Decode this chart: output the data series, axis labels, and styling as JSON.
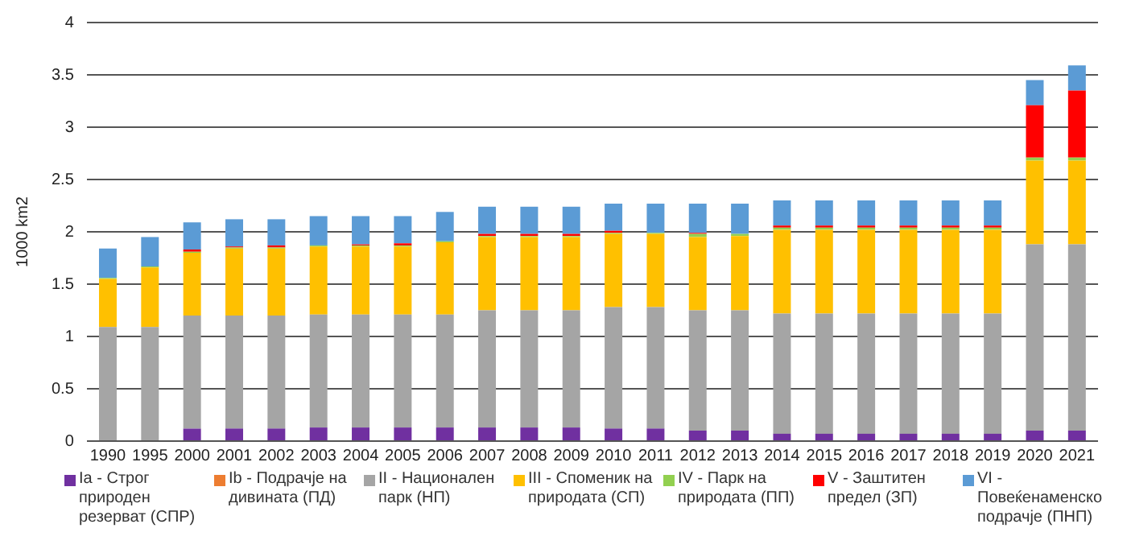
{
  "chart_data": {
    "type": "bar",
    "stacked": true,
    "ylabel": "1000 km2",
    "categories": [
      "1990",
      "1995",
      "2000",
      "2001",
      "2002",
      "2003",
      "2004",
      "2005",
      "2006",
      "2007",
      "2008",
      "2009",
      "2010",
      "2011",
      "2012",
      "2013",
      "2014",
      "2015",
      "2016",
      "2017",
      "2018",
      "2019",
      "2020",
      "2021"
    ],
    "series": [
      {
        "name": "Ia - Строг природен резерват (СПР)",
        "color": "#7030a0",
        "values": [
          0,
          0,
          0.12,
          0.12,
          0.12,
          0.13,
          0.13,
          0.13,
          0.13,
          0.13,
          0.13,
          0.13,
          0.12,
          0.12,
          0.1,
          0.1,
          0.07,
          0.07,
          0.07,
          0.07,
          0.07,
          0.07,
          0.1,
          0.1
        ]
      },
      {
        "name": "Ib - Подрачје на дивината (ПД)",
        "color": "#ed7d31",
        "values": [
          0,
          0,
          0,
          0,
          0,
          0,
          0,
          0,
          0,
          0,
          0,
          0,
          0,
          0,
          0,
          0,
          0,
          0,
          0,
          0,
          0,
          0,
          0,
          0
        ]
      },
      {
        "name": "II - Национален парк (НП)",
        "color": "#a5a5a5",
        "values": [
          1.09,
          1.09,
          1.08,
          1.08,
          1.08,
          1.08,
          1.08,
          1.08,
          1.08,
          1.12,
          1.12,
          1.12,
          1.16,
          1.16,
          1.15,
          1.15,
          1.15,
          1.15,
          1.15,
          1.15,
          1.15,
          1.15,
          1.78,
          1.78
        ]
      },
      {
        "name": "III - Споменик на природата (СП)",
        "color": "#ffc000",
        "values": [
          0.46,
          0.57,
          0.6,
          0.64,
          0.64,
          0.65,
          0.65,
          0.65,
          0.69,
          0.7,
          0.7,
          0.7,
          0.7,
          0.7,
          0.7,
          0.71,
          0.8,
          0.8,
          0.8,
          0.8,
          0.8,
          0.8,
          0.8,
          0.8
        ]
      },
      {
        "name": "IV - Парк на природата (ПП)",
        "color": "#92d050",
        "values": [
          0.01,
          0.01,
          0.01,
          0.01,
          0.01,
          0.01,
          0.01,
          0.01,
          0.01,
          0.01,
          0.01,
          0.01,
          0.01,
          0.01,
          0.03,
          0.02,
          0.02,
          0.02,
          0.02,
          0.02,
          0.02,
          0.02,
          0.03,
          0.03
        ]
      },
      {
        "name": "V - Заштитен предел (ЗП)",
        "color": "#ff0000",
        "values": [
          0,
          0,
          0.02,
          0.01,
          0.02,
          0,
          0.01,
          0.02,
          0,
          0.02,
          0.02,
          0.02,
          0.02,
          0,
          0.01,
          0,
          0.02,
          0.02,
          0.02,
          0.02,
          0.02,
          0.02,
          0.5,
          0.64
        ]
      },
      {
        "name": "VI - Повеќенаменско подрачје (ПНП)",
        "color": "#5b9bd5",
        "values": [
          0.28,
          0.28,
          0.26,
          0.26,
          0.25,
          0.28,
          0.27,
          0.26,
          0.28,
          0.26,
          0.26,
          0.26,
          0.26,
          0.28,
          0.28,
          0.29,
          0.24,
          0.24,
          0.24,
          0.24,
          0.24,
          0.24,
          0.24,
          0.24
        ]
      }
    ],
    "ylim": [
      0,
      4
    ],
    "yticks": [
      0,
      0.5,
      1,
      1.5,
      2,
      2.5,
      3,
      3.5,
      4
    ],
    "grid": "y",
    "legend": "bottom"
  }
}
